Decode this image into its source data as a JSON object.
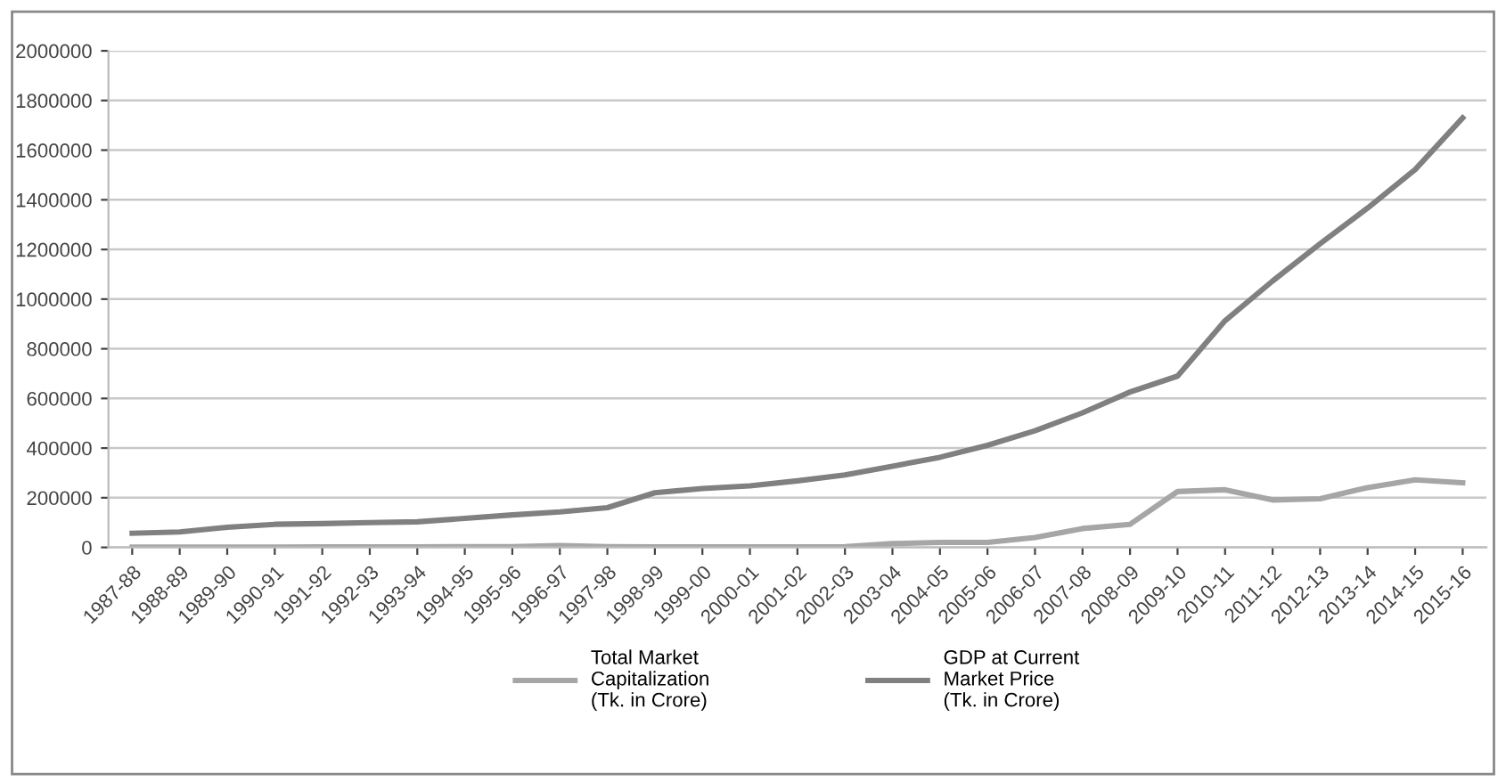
{
  "chart_data": {
    "type": "line",
    "categories": [
      "1987-88",
      "1988-89",
      "1989-90",
      "1990-91",
      "1991-92",
      "1992-93",
      "1993-94",
      "1994-95",
      "1995-96",
      "1996-97",
      "1997-98",
      "1998-99",
      "1999-00",
      "2000-01",
      "2001-02",
      "2002-03",
      "2003-04",
      "2004-05",
      "2005-06",
      "2006-07",
      "2007-08",
      "2008-09",
      "2009-10",
      "2010-11",
      "2011-12",
      "2012-13",
      "2013-14",
      "2014-15",
      "2015-16"
    ],
    "series": [
      {
        "name": "Total Market\nCapitalization\n(Tk. in Crore)",
        "color": "#a6a6a6",
        "values": [
          1000,
          1000,
          1500,
          1500,
          2000,
          2000,
          2000,
          3000,
          3000,
          7000,
          3000,
          2000,
          2000,
          2000,
          2000,
          3000,
          15000,
          20000,
          20000,
          40000,
          76000,
          93000,
          225000,
          232000,
          191000,
          196000,
          241000,
          272000,
          260000
        ]
      },
      {
        "name": "GDP at Current\nMarket Price\n(Tk. in Crore)",
        "color": "#808080",
        "values": [
          57000,
          62000,
          81000,
          93000,
          96000,
          100000,
          103000,
          117000,
          131000,
          143000,
          160000,
          220000,
          237000,
          248000,
          268000,
          292000,
          327000,
          363000,
          411000,
          470000,
          542000,
          626000,
          690000,
          913000,
          1073000,
          1223000,
          1367000,
          1522000,
          1730000
        ]
      }
    ],
    "ylim": [
      0,
      2000000
    ],
    "yticks": [
      0,
      200000,
      400000,
      600000,
      800000,
      1000000,
      1200000,
      1400000,
      1600000,
      1800000,
      2000000
    ],
    "grid": "y",
    "legend": "bottom",
    "marker": "none",
    "line_style": "solid"
  }
}
